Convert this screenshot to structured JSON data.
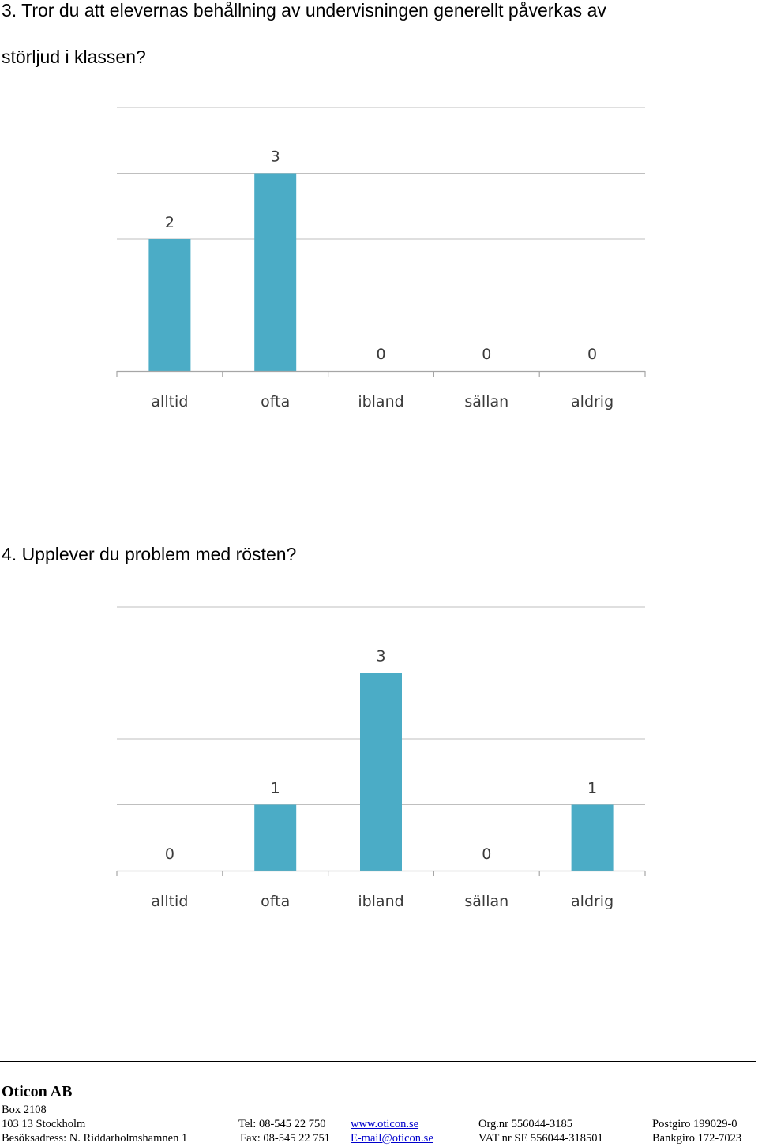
{
  "questions": [
    {
      "title_lines": [
        "3. Tror du att elevernas behållning av undervisningen generellt påverkas av",
        "störljud i klassen?"
      ]
    },
    {
      "title_lines": [
        "4. Upplever du problem med rösten?"
      ]
    }
  ],
  "chart_data": [
    {
      "type": "bar",
      "categories": [
        "alltid",
        "ofta",
        "ibland",
        "sällan",
        "aldrig"
      ],
      "values": [
        2,
        3,
        0,
        0,
        0
      ],
      "data_labels": [
        "2",
        "3",
        "0",
        "0",
        "0"
      ],
      "ylim": [
        0,
        4
      ],
      "grid": true,
      "bar_color": "#4bacc6"
    },
    {
      "type": "bar",
      "categories": [
        "alltid",
        "ofta",
        "ibland",
        "sällan",
        "aldrig"
      ],
      "values": [
        0,
        1,
        3,
        0,
        1
      ],
      "data_labels": [
        "0",
        "1",
        "3",
        "0",
        "1"
      ],
      "ylim": [
        0,
        4
      ],
      "grid": true,
      "bar_color": "#4bacc6"
    }
  ],
  "footer": {
    "company": "Oticon AB",
    "box": "Box 2108",
    "postal": "103 13 Stockholm",
    "visit": "Besöksadress: N. Riddarholmshamnen 1",
    "tel": "Tel:  08-545 22 750",
    "fax": "Fax: 08-545 22 751",
    "web": "www.oticon.se",
    "email": "E-mail@oticon.se",
    "orgnr": "Org.nr 556044-3185",
    "vat": "VAT nr SE 556044-318501",
    "postgiro": "Postgiro  199029-0",
    "bankgiro": "Bankgiro 172-7023"
  }
}
